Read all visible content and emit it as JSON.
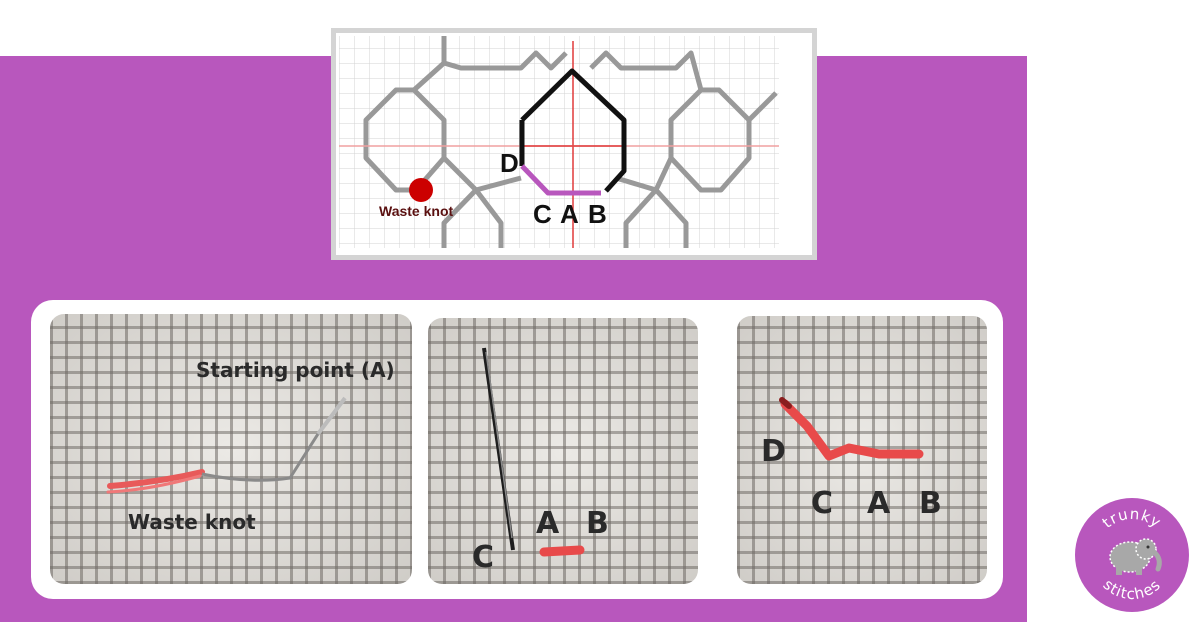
{
  "diagram": {
    "labels": {
      "d": "D",
      "c": "C",
      "a": "A",
      "b": "B",
      "waste_knot": "Waste knot"
    },
    "colors": {
      "outline_gray": "#999999",
      "active_outline": "#111111",
      "stitch": "#b857bd",
      "axis": "#e03a3a",
      "knot": "#cc0000",
      "knot_label": "#5a1010"
    }
  },
  "photos": [
    {
      "name": "photo-waste-knot",
      "labels": {
        "start": "Starting point (A)",
        "waste": "Waste knot"
      }
    },
    {
      "name": "photo-needle",
      "labels": {
        "c": "C",
        "a": "A",
        "b": "B"
      }
    },
    {
      "name": "photo-stitches",
      "labels": {
        "d": "D",
        "c": "C",
        "a": "A",
        "b": "B"
      }
    }
  ],
  "logo": {
    "top_text": "trunky",
    "bottom_text": "stitches",
    "icon": "elephant-icon",
    "color": "#b857bd"
  },
  "background": {
    "band": "#b857bd",
    "page": "#ffffff"
  }
}
